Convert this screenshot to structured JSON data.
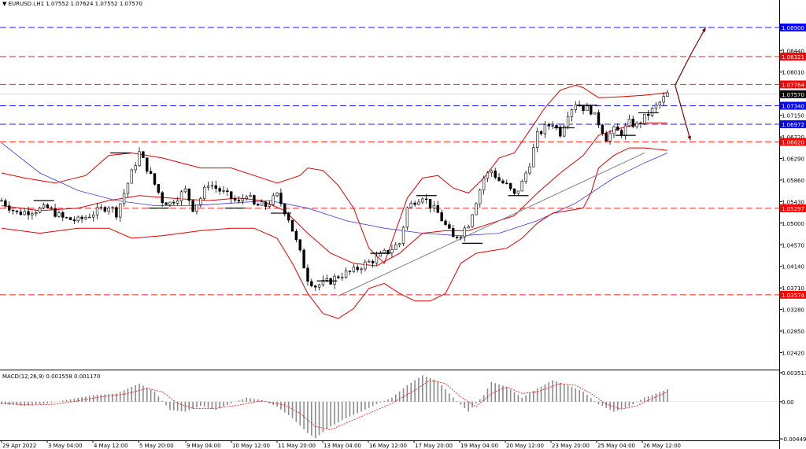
{
  "symbol_header": {
    "arrow": "▼",
    "text": "EURUSD.i,H1  1.07552 1.07624 1.07552 1.07570"
  },
  "macd_label": "MACD(12,26,9) 0.001558 0.001170",
  "colors": {
    "background": "#ffffff",
    "bar": "#000000",
    "bollinger": "#e00000",
    "ma": "#3b3bdc",
    "trendline": "#808080",
    "blue_level": "#1a1aff",
    "red_level": "#ff2020",
    "arrow": "#8b0000",
    "macd_hist": "#8a8a8a",
    "macd_signal": "#ff0000",
    "blue_tag": "#0000ff",
    "red_tag": "#ff0000"
  },
  "chart_data": {
    "type": "candlestick",
    "symbol": "EURUSD.i",
    "timeframe": "H1",
    "ylim": [
      1.0213,
      1.094
    ],
    "price_ticks": [
      "1.08440",
      "1.08010",
      "1.07150",
      "1.06720",
      "1.06290",
      "1.05860",
      "1.05430",
      "1.05000",
      "1.04570",
      "1.04140",
      "1.03710",
      "1.03280",
      "1.02850",
      "1.02420"
    ],
    "x_ticks": [
      "29 Apr 2022",
      "3 May 04:00",
      "4 May 12:00",
      "5 May 20:00",
      "9 May 04:00",
      "10 May 12:00",
      "11 May 20:00",
      "13 May 04:00",
      "16 May 12:00",
      "17 May 20:00",
      "19 May 04:00",
      "20 May 12:00",
      "23 May 20:00",
      "25 May 04:00",
      "26 May 12:00"
    ],
    "current_price": "1.07570",
    "levels": [
      {
        "label": "1.08900",
        "value": 1.089,
        "kind": "blue"
      },
      {
        "label": "1.08321",
        "value": 1.08321,
        "kind": "red"
      },
      {
        "label": "1.07764",
        "value": 1.07764,
        "kind": "red"
      },
      {
        "label": "1.07340",
        "value": 1.0734,
        "kind": "blue"
      },
      {
        "label": "1.06972",
        "value": 1.06972,
        "kind": "blue"
      },
      {
        "label": "1.06620",
        "value": 1.0662,
        "kind": "red"
      },
      {
        "label": "1.05297",
        "value": 1.05297,
        "kind": "red"
      },
      {
        "label": "1.03574",
        "value": 1.03574,
        "kind": "red"
      }
    ],
    "close_path": [
      [
        0,
        1.0545
      ],
      [
        4,
        1.052
      ],
      [
        8,
        1.0525
      ],
      [
        12,
        1.053
      ],
      [
        16,
        1.051
      ],
      [
        20,
        1.0505
      ],
      [
        24,
        1.052
      ],
      [
        28,
        1.0535
      ],
      [
        30,
        1.052
      ],
      [
        34,
        1.06
      ],
      [
        36,
        1.064
      ],
      [
        38,
        1.061
      ],
      [
        42,
        1.0545
      ],
      [
        44,
        1.054
      ],
      [
        48,
        1.0565
      ],
      [
        50,
        1.053
      ],
      [
        52,
        1.055
      ],
      [
        54,
        1.058
      ],
      [
        58,
        1.056
      ],
      [
        62,
        1.054
      ],
      [
        64,
        1.056
      ],
      [
        66,
        1.0535
      ],
      [
        69,
        1.0535
      ],
      [
        72,
        1.0555
      ],
      [
        75,
        1.051
      ],
      [
        78,
        1.044
      ],
      [
        80,
        1.039
      ],
      [
        82,
        1.0375
      ],
      [
        86,
        1.0385
      ],
      [
        88,
        1.0395
      ],
      [
        92,
        1.0405
      ],
      [
        94,
        1.0415
      ],
      [
        98,
        1.043
      ],
      [
        102,
        1.045
      ],
      [
        104,
        1.046
      ],
      [
        106,
        1.053
      ],
      [
        108,
        1.0545
      ],
      [
        110,
        1.0555
      ],
      [
        112,
        1.0535
      ],
      [
        114,
        1.052
      ],
      [
        116,
        1.0495
      ],
      [
        118,
        1.047
      ],
      [
        120,
        1.048
      ],
      [
        122,
        1.05
      ],
      [
        124,
        1.0545
      ],
      [
        126,
        1.059
      ],
      [
        128,
        1.0605
      ],
      [
        130,
        1.0585
      ],
      [
        132,
        1.0575
      ],
      [
        134,
        1.0555
      ],
      [
        136,
        1.058
      ],
      [
        138,
        1.062
      ],
      [
        140,
        1.0675
      ],
      [
        142,
        1.069
      ],
      [
        144,
        1.07
      ],
      [
        146,
        1.068
      ],
      [
        148,
        1.072
      ],
      [
        150,
        1.074
      ],
      [
        152,
        1.073
      ],
      [
        154,
        1.0725
      ],
      [
        156,
        1.07
      ],
      [
        158,
        1.067
      ],
      [
        160,
        1.0685
      ],
      [
        162,
        1.068
      ],
      [
        164,
        1.07
      ],
      [
        166,
        1.0695
      ],
      [
        168,
        1.071
      ],
      [
        170,
        1.0725
      ],
      [
        172,
        1.074
      ],
      [
        174,
        1.0757
      ]
    ],
    "upper_band": [
      [
        0,
        1.06
      ],
      [
        6,
        1.059
      ],
      [
        14,
        1.058
      ],
      [
        22,
        1.0595
      ],
      [
        28,
        1.0635
      ],
      [
        34,
        1.064
      ],
      [
        42,
        1.063
      ],
      [
        52,
        1.061
      ],
      [
        60,
        1.061
      ],
      [
        66,
        1.0595
      ],
      [
        72,
        1.058
      ],
      [
        78,
        1.0595
      ],
      [
        80,
        1.061
      ],
      [
        84,
        1.0605
      ],
      [
        88,
        1.0575
      ],
      [
        92,
        1.053
      ],
      [
        96,
        1.045
      ],
      [
        100,
        1.042
      ],
      [
        106,
        1.055
      ],
      [
        110,
        1.059
      ],
      [
        114,
        1.0595
      ],
      [
        118,
        1.057
      ],
      [
        122,
        1.056
      ],
      [
        126,
        1.059
      ],
      [
        130,
        1.063
      ],
      [
        134,
        1.064
      ],
      [
        138,
        1.0685
      ],
      [
        142,
        1.073
      ],
      [
        146,
        1.0765
      ],
      [
        150,
        1.0775
      ],
      [
        152,
        1.077
      ],
      [
        156,
        1.075
      ],
      [
        162,
        1.0752
      ],
      [
        168,
        1.0755
      ],
      [
        174,
        1.076
      ]
    ],
    "lower_band": [
      [
        0,
        1.049
      ],
      [
        10,
        1.048
      ],
      [
        20,
        1.049
      ],
      [
        28,
        1.049
      ],
      [
        34,
        1.047
      ],
      [
        42,
        1.0475
      ],
      [
        52,
        1.0485
      ],
      [
        60,
        1.049
      ],
      [
        66,
        1.049
      ],
      [
        72,
        1.047
      ],
      [
        76,
        1.042
      ],
      [
        80,
        1.036
      ],
      [
        84,
        1.032
      ],
      [
        88,
        1.031
      ],
      [
        92,
        1.033
      ],
      [
        96,
        1.037
      ],
      [
        100,
        1.038
      ],
      [
        104,
        1.036
      ],
      [
        108,
        1.0345
      ],
      [
        112,
        1.0345
      ],
      [
        116,
        1.036
      ],
      [
        120,
        1.042
      ],
      [
        124,
        1.044
      ],
      [
        128,
        1.0445
      ],
      [
        132,
        1.045
      ],
      [
        136,
        1.047
      ],
      [
        140,
        1.05
      ],
      [
        144,
        1.052
      ],
      [
        148,
        1.0525
      ],
      [
        152,
        1.053
      ],
      [
        154,
        1.056
      ],
      [
        156,
        1.061
      ],
      [
        160,
        1.0635
      ],
      [
        164,
        1.065
      ],
      [
        168,
        1.065
      ],
      [
        174,
        1.0645
      ]
    ],
    "middle_band": [
      [
        0,
        1.0535
      ],
      [
        10,
        1.0525
      ],
      [
        20,
        1.053
      ],
      [
        28,
        1.0545
      ],
      [
        36,
        1.0555
      ],
      [
        44,
        1.055
      ],
      [
        54,
        1.0545
      ],
      [
        62,
        1.055
      ],
      [
        68,
        1.0545
      ],
      [
        74,
        1.0525
      ],
      [
        80,
        1.048
      ],
      [
        86,
        1.044
      ],
      [
        92,
        1.042
      ],
      [
        98,
        1.0415
      ],
      [
        104,
        1.044
      ],
      [
        110,
        1.048
      ],
      [
        116,
        1.0485
      ],
      [
        122,
        1.0485
      ],
      [
        128,
        1.05
      ],
      [
        134,
        1.0515
      ],
      [
        140,
        1.056
      ],
      [
        146,
        1.06
      ],
      [
        152,
        1.0635
      ],
      [
        156,
        1.0675
      ],
      [
        162,
        1.069
      ],
      [
        168,
        1.07
      ],
      [
        174,
        1.07
      ]
    ],
    "moving_average": [
      [
        0,
        1.066
      ],
      [
        10,
        1.06
      ],
      [
        20,
        1.0565
      ],
      [
        30,
        1.0545
      ],
      [
        40,
        1.0535
      ],
      [
        50,
        1.0535
      ],
      [
        60,
        1.054
      ],
      [
        70,
        1.0545
      ],
      [
        80,
        1.053
      ],
      [
        90,
        1.0505
      ],
      [
        100,
        1.049
      ],
      [
        110,
        1.048
      ],
      [
        120,
        1.0475
      ],
      [
        130,
        1.048
      ],
      [
        140,
        1.0505
      ],
      [
        150,
        1.054
      ],
      [
        160,
        1.059
      ],
      [
        168,
        1.062
      ],
      [
        174,
        1.064
      ]
    ],
    "trendline": [
      [
        88,
        1.0355
      ],
      [
        168,
        1.064
      ]
    ],
    "projection_up": [
      [
        176,
        1.0775
      ],
      [
        180,
        1.0835
      ],
      [
        184,
        1.089
      ]
    ],
    "projection_down": [
      [
        176,
        1.0775
      ],
      [
        180,
        1.0665
      ]
    ],
    "macd": {
      "ylim": [
        -0.004493,
        0.003513
      ],
      "ticks": [
        "0.003513",
        "0.00",
        "-0.004493"
      ],
      "histogram": [
        [
          0,
          -0.0003
        ],
        [
          6,
          -0.0005
        ],
        [
          12,
          -0.0002
        ],
        [
          18,
          0.0003
        ],
        [
          24,
          0.0008
        ],
        [
          30,
          0.001
        ],
        [
          36,
          0.0022
        ],
        [
          40,
          0.0012
        ],
        [
          44,
          -0.001
        ],
        [
          48,
          -0.0012
        ],
        [
          52,
          -0.0005
        ],
        [
          56,
          -0.001
        ],
        [
          60,
          -0.0002
        ],
        [
          64,
          0.0005
        ],
        [
          68,
          0.0002
        ],
        [
          72,
          -0.0006
        ],
        [
          76,
          -0.002
        ],
        [
          80,
          -0.0038
        ],
        [
          82,
          -0.0044
        ],
        [
          86,
          -0.003
        ],
        [
          90,
          -0.002
        ],
        [
          94,
          -0.0012
        ],
        [
          98,
          -0.0003
        ],
        [
          102,
          0.0005
        ],
        [
          106,
          0.002
        ],
        [
          110,
          0.0032
        ],
        [
          114,
          0.0025
        ],
        [
          118,
          0.0005
        ],
        [
          122,
          -0.0012
        ],
        [
          126,
          0.0008
        ],
        [
          128,
          0.0024
        ],
        [
          132,
          0.0018
        ],
        [
          136,
          0.0005
        ],
        [
          140,
          0.0016
        ],
        [
          144,
          0.0026
        ],
        [
          148,
          0.002
        ],
        [
          152,
          0.0012
        ],
        [
          156,
          -0.0003
        ],
        [
          160,
          -0.0012
        ],
        [
          164,
          -0.0006
        ],
        [
          168,
          0.0005
        ],
        [
          174,
          0.0015
        ]
      ],
      "signal": [
        [
          0,
          -0.0002
        ],
        [
          8,
          -0.0004
        ],
        [
          14,
          -0.0003
        ],
        [
          20,
          0.0001
        ],
        [
          26,
          0.0006
        ],
        [
          32,
          0.0009
        ],
        [
          38,
          0.0016
        ],
        [
          42,
          0.0012
        ],
        [
          46,
          -0.0002
        ],
        [
          50,
          -0.0008
        ],
        [
          56,
          -0.0008
        ],
        [
          62,
          -0.0004
        ],
        [
          68,
          0.0001
        ],
        [
          74,
          -0.0004
        ],
        [
          78,
          -0.0014
        ],
        [
          82,
          -0.003
        ],
        [
          86,
          -0.0034
        ],
        [
          90,
          -0.0026
        ],
        [
          96,
          -0.0014
        ],
        [
          102,
          -0.0002
        ],
        [
          108,
          0.0014
        ],
        [
          112,
          0.0026
        ],
        [
          116,
          0.0022
        ],
        [
          120,
          0.0006
        ],
        [
          124,
          -0.0006
        ],
        [
          128,
          0.001
        ],
        [
          132,
          0.0018
        ],
        [
          136,
          0.001
        ],
        [
          140,
          0.0012
        ],
        [
          146,
          0.0022
        ],
        [
          150,
          0.002
        ],
        [
          154,
          0.001
        ],
        [
          158,
          -0.0003
        ],
        [
          162,
          -0.0009
        ],
        [
          166,
          -0.0005
        ],
        [
          170,
          0.0004
        ],
        [
          174,
          0.0012
        ]
      ]
    }
  }
}
